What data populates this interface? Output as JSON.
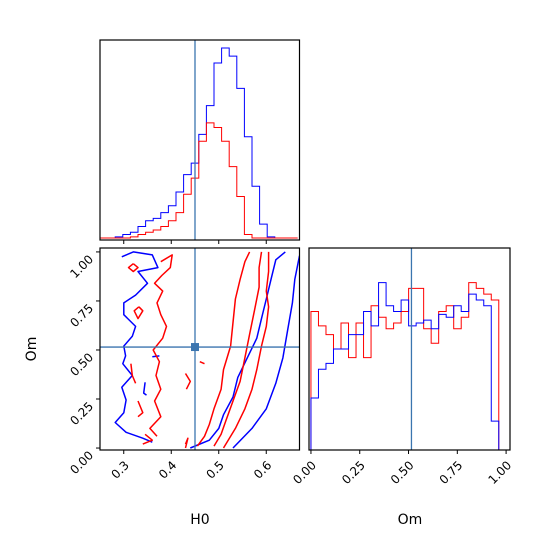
{
  "chart_data": {
    "type": "corner",
    "parameters": [
      "H0",
      "Om"
    ],
    "truth": {
      "H0": 0.45,
      "Om": 0.515
    },
    "colors": {
      "truth": "#3b75af",
      "red_series": "#ff0000",
      "blue_series": "#0000ff"
    },
    "h0_axis": {
      "range": [
        0.25,
        0.67
      ],
      "ticks": [
        "0.3",
        "0.4",
        "0.5",
        "0.6"
      ],
      "label": "H0"
    },
    "om_axis": {
      "range": [
        -0.01,
        1.02
      ],
      "ticks": [
        "0.00",
        "0.25",
        "0.50",
        "0.75",
        "1.00"
      ],
      "label": "Om"
    },
    "h0_hist": {
      "bin_start": 0.25,
      "bin_width": 0.016,
      "blue_counts": [
        0,
        0,
        1,
        3,
        5,
        10,
        15,
        17,
        22,
        28,
        40,
        55,
        65,
        90,
        115,
        152,
        165,
        158,
        130,
        88,
        45,
        12,
        1,
        0,
        0,
        0
      ],
      "red_counts": [
        0,
        0,
        0,
        0,
        1,
        3,
        5,
        7,
        10,
        15,
        22,
        38,
        52,
        84,
        100,
        96,
        84,
        62,
        36,
        3,
        0,
        0,
        0,
        0,
        0,
        0
      ],
      "ymax": 172
    },
    "om_hist": {
      "bin_start": 0.0,
      "bin_width": 0.0385,
      "blue_counts": [
        48,
        58,
        60,
        65,
        65,
        70,
        70,
        78,
        73,
        88,
        80,
        78,
        82,
        73,
        74,
        75,
        72,
        77,
        76,
        80,
        78,
        84,
        82,
        80,
        40,
        0
      ],
      "red_counts": [
        78,
        73,
        70,
        65,
        74,
        62,
        74,
        62,
        80,
        76,
        72,
        74,
        78,
        86,
        86,
        72,
        67,
        78,
        80,
        72,
        76,
        88,
        86,
        84,
        82,
        0
      ],
      "ymin": 30,
      "ymax": 100
    },
    "contours": [
      {
        "series": "blue",
        "points": [
          [
            0.296,
            0.975
          ],
          [
            0.32,
            1.0
          ],
          [
            0.36,
            0.985
          ],
          [
            0.372,
            0.92
          ],
          [
            0.33,
            0.9
          ],
          [
            0.35,
            0.84
          ],
          [
            0.325,
            0.78
          ],
          [
            0.3,
            0.74
          ],
          [
            0.3,
            0.68
          ],
          [
            0.325,
            0.62
          ],
          [
            0.318,
            0.57
          ],
          [
            0.3,
            0.52
          ],
          [
            0.304,
            0.47
          ],
          [
            0.298,
            0.43
          ],
          [
            0.318,
            0.37
          ],
          [
            0.296,
            0.31
          ],
          [
            0.305,
            0.245
          ],
          [
            0.3,
            0.18
          ],
          [
            0.282,
            0.13
          ],
          [
            0.305,
            0.08
          ],
          [
            0.34,
            0.05
          ],
          [
            0.36,
            0.03
          ]
        ]
      },
      {
        "series": "blue",
        "points": [
          [
            0.345,
            0.335
          ],
          [
            0.342,
            0.28
          ],
          [
            0.348,
            0.27
          ]
        ]
      },
      {
        "series": "blue",
        "points": [
          [
            0.36,
            0.465
          ],
          [
            0.375,
            0.47
          ]
        ]
      },
      {
        "series": "blue",
        "points": [
          [
            0.44,
            0.0
          ],
          [
            0.48,
            0.04
          ],
          [
            0.5,
            0.1
          ],
          [
            0.51,
            0.17
          ],
          [
            0.53,
            0.26
          ],
          [
            0.54,
            0.36
          ],
          [
            0.56,
            0.46
          ],
          [
            0.58,
            0.56
          ],
          [
            0.59,
            0.66
          ],
          [
            0.6,
            0.76
          ],
          [
            0.61,
            0.86
          ],
          [
            0.62,
            0.96
          ],
          [
            0.64,
            1.0
          ]
        ]
      },
      {
        "series": "blue",
        "points": [
          [
            0.53,
            0.0
          ],
          [
            0.57,
            0.1
          ],
          [
            0.6,
            0.2
          ],
          [
            0.62,
            0.33
          ],
          [
            0.635,
            0.46
          ],
          [
            0.645,
            0.6
          ],
          [
            0.655,
            0.74
          ],
          [
            0.66,
            0.86
          ],
          [
            0.67,
            0.98
          ]
        ]
      },
      {
        "series": "red",
        "points": [
          [
            0.378,
            0.95
          ],
          [
            0.402,
            0.985
          ],
          [
            0.398,
            0.92
          ],
          [
            0.38,
            0.88
          ],
          [
            0.365,
            0.84
          ],
          [
            0.382,
            0.8
          ],
          [
            0.37,
            0.74
          ],
          [
            0.378,
            0.68
          ],
          [
            0.39,
            0.62
          ],
          [
            0.382,
            0.56
          ],
          [
            0.362,
            0.5
          ],
          [
            0.375,
            0.44
          ],
          [
            0.368,
            0.37
          ],
          [
            0.378,
            0.3
          ],
          [
            0.365,
            0.24
          ],
          [
            0.378,
            0.16
          ],
          [
            0.355,
            0.1
          ],
          [
            0.37,
            0.06
          ]
        ]
      },
      {
        "series": "red",
        "points": [
          [
            0.32,
            0.94
          ],
          [
            0.33,
            0.92
          ],
          [
            0.32,
            0.9
          ],
          [
            0.31,
            0.92
          ],
          [
            0.32,
            0.94
          ]
        ]
      },
      {
        "series": "red",
        "points": [
          [
            0.332,
            0.72
          ],
          [
            0.34,
            0.7
          ],
          [
            0.33,
            0.66
          ],
          [
            0.322,
            0.7
          ],
          [
            0.332,
            0.72
          ]
        ]
      },
      {
        "series": "red",
        "points": [
          [
            0.315,
            0.43
          ],
          [
            0.318,
            0.37
          ],
          [
            0.325,
            0.33
          ]
        ]
      },
      {
        "series": "red",
        "points": [
          [
            0.33,
            0.24
          ],
          [
            0.34,
            0.18
          ],
          [
            0.33,
            0.16
          ]
        ]
      },
      {
        "series": "red",
        "points": [
          [
            0.345,
            0.07
          ],
          [
            0.36,
            0.04
          ],
          [
            0.34,
            0.02
          ]
        ]
      },
      {
        "series": "red",
        "points": [
          [
            0.455,
            0.01
          ],
          [
            0.47,
            0.06
          ],
          [
            0.48,
            0.12
          ],
          [
            0.49,
            0.2
          ],
          [
            0.505,
            0.3
          ],
          [
            0.51,
            0.4
          ],
          [
            0.525,
            0.52
          ],
          [
            0.53,
            0.64
          ],
          [
            0.535,
            0.76
          ],
          [
            0.545,
            0.86
          ],
          [
            0.555,
            0.95
          ],
          [
            0.565,
            1.0
          ]
        ]
      },
      {
        "series": "red",
        "points": [
          [
            0.49,
            0.01
          ],
          [
            0.505,
            0.07
          ],
          [
            0.515,
            0.14
          ],
          [
            0.53,
            0.24
          ],
          [
            0.545,
            0.34
          ],
          [
            0.555,
            0.46
          ],
          [
            0.565,
            0.58
          ],
          [
            0.575,
            0.7
          ],
          [
            0.585,
            0.82
          ],
          [
            0.585,
            0.92
          ],
          [
            0.59,
            1.0
          ]
        ]
      },
      {
        "series": "red",
        "points": [
          [
            0.51,
            0.0
          ],
          [
            0.535,
            0.1
          ],
          [
            0.555,
            0.2
          ],
          [
            0.57,
            0.3
          ],
          [
            0.58,
            0.4
          ],
          [
            0.59,
            0.52
          ],
          [
            0.6,
            0.62
          ],
          [
            0.605,
            0.72
          ],
          [
            0.6,
            0.8
          ],
          [
            0.605,
            0.9
          ],
          [
            0.605,
            1.0
          ]
        ]
      },
      {
        "series": "red",
        "points": [
          [
            0.43,
            0.38
          ],
          [
            0.44,
            0.34
          ],
          [
            0.432,
            0.3
          ]
        ]
      },
      {
        "series": "red",
        "points": [
          [
            0.46,
            0.44
          ],
          [
            0.47,
            0.43
          ]
        ]
      },
      {
        "series": "red",
        "points": [
          [
            0.43,
            0.0
          ],
          [
            0.435,
            0.05
          ],
          [
            0.43,
            0.02
          ]
        ]
      }
    ]
  }
}
